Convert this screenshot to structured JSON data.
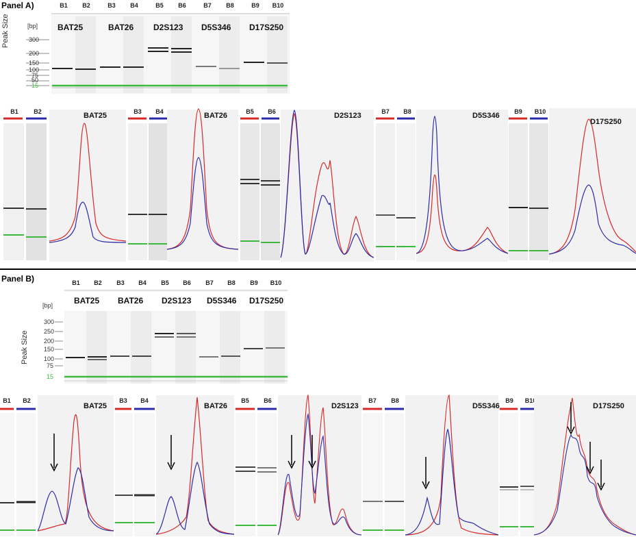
{
  "panel_a": {
    "title": "Panel A)",
    "lanes": [
      "B1",
      "B2",
      "B3",
      "B4",
      "B5",
      "B6",
      "B7",
      "B8",
      "B9",
      "B10"
    ],
    "y_unit": "[bp]",
    "y_title": "Peak Size",
    "y_ticks": [
      "300",
      "200",
      "150",
      "100",
      "75",
      "50",
      "15"
    ],
    "markers": [
      "BAT25",
      "BAT26",
      "D2S123",
      "D5S346",
      "D17S250"
    ]
  },
  "panel_b": {
    "title": "Panel B)",
    "lanes": [
      "B1",
      "B2",
      "B3",
      "B4",
      "B5",
      "B6",
      "B7",
      "B8",
      "B9",
      "B10"
    ],
    "y_unit": "[bp]",
    "y_title": "Peak Size",
    "y_ticks": [
      "300",
      "250",
      "200",
      "150",
      "100",
      "75",
      "15"
    ],
    "markers": [
      "BAT25",
      "BAT26",
      "D2S123",
      "D5S346",
      "D17S250"
    ]
  },
  "colors": {
    "red": "#d62828",
    "blue": "#2a2aa8",
    "green": "#3cb83c"
  }
}
